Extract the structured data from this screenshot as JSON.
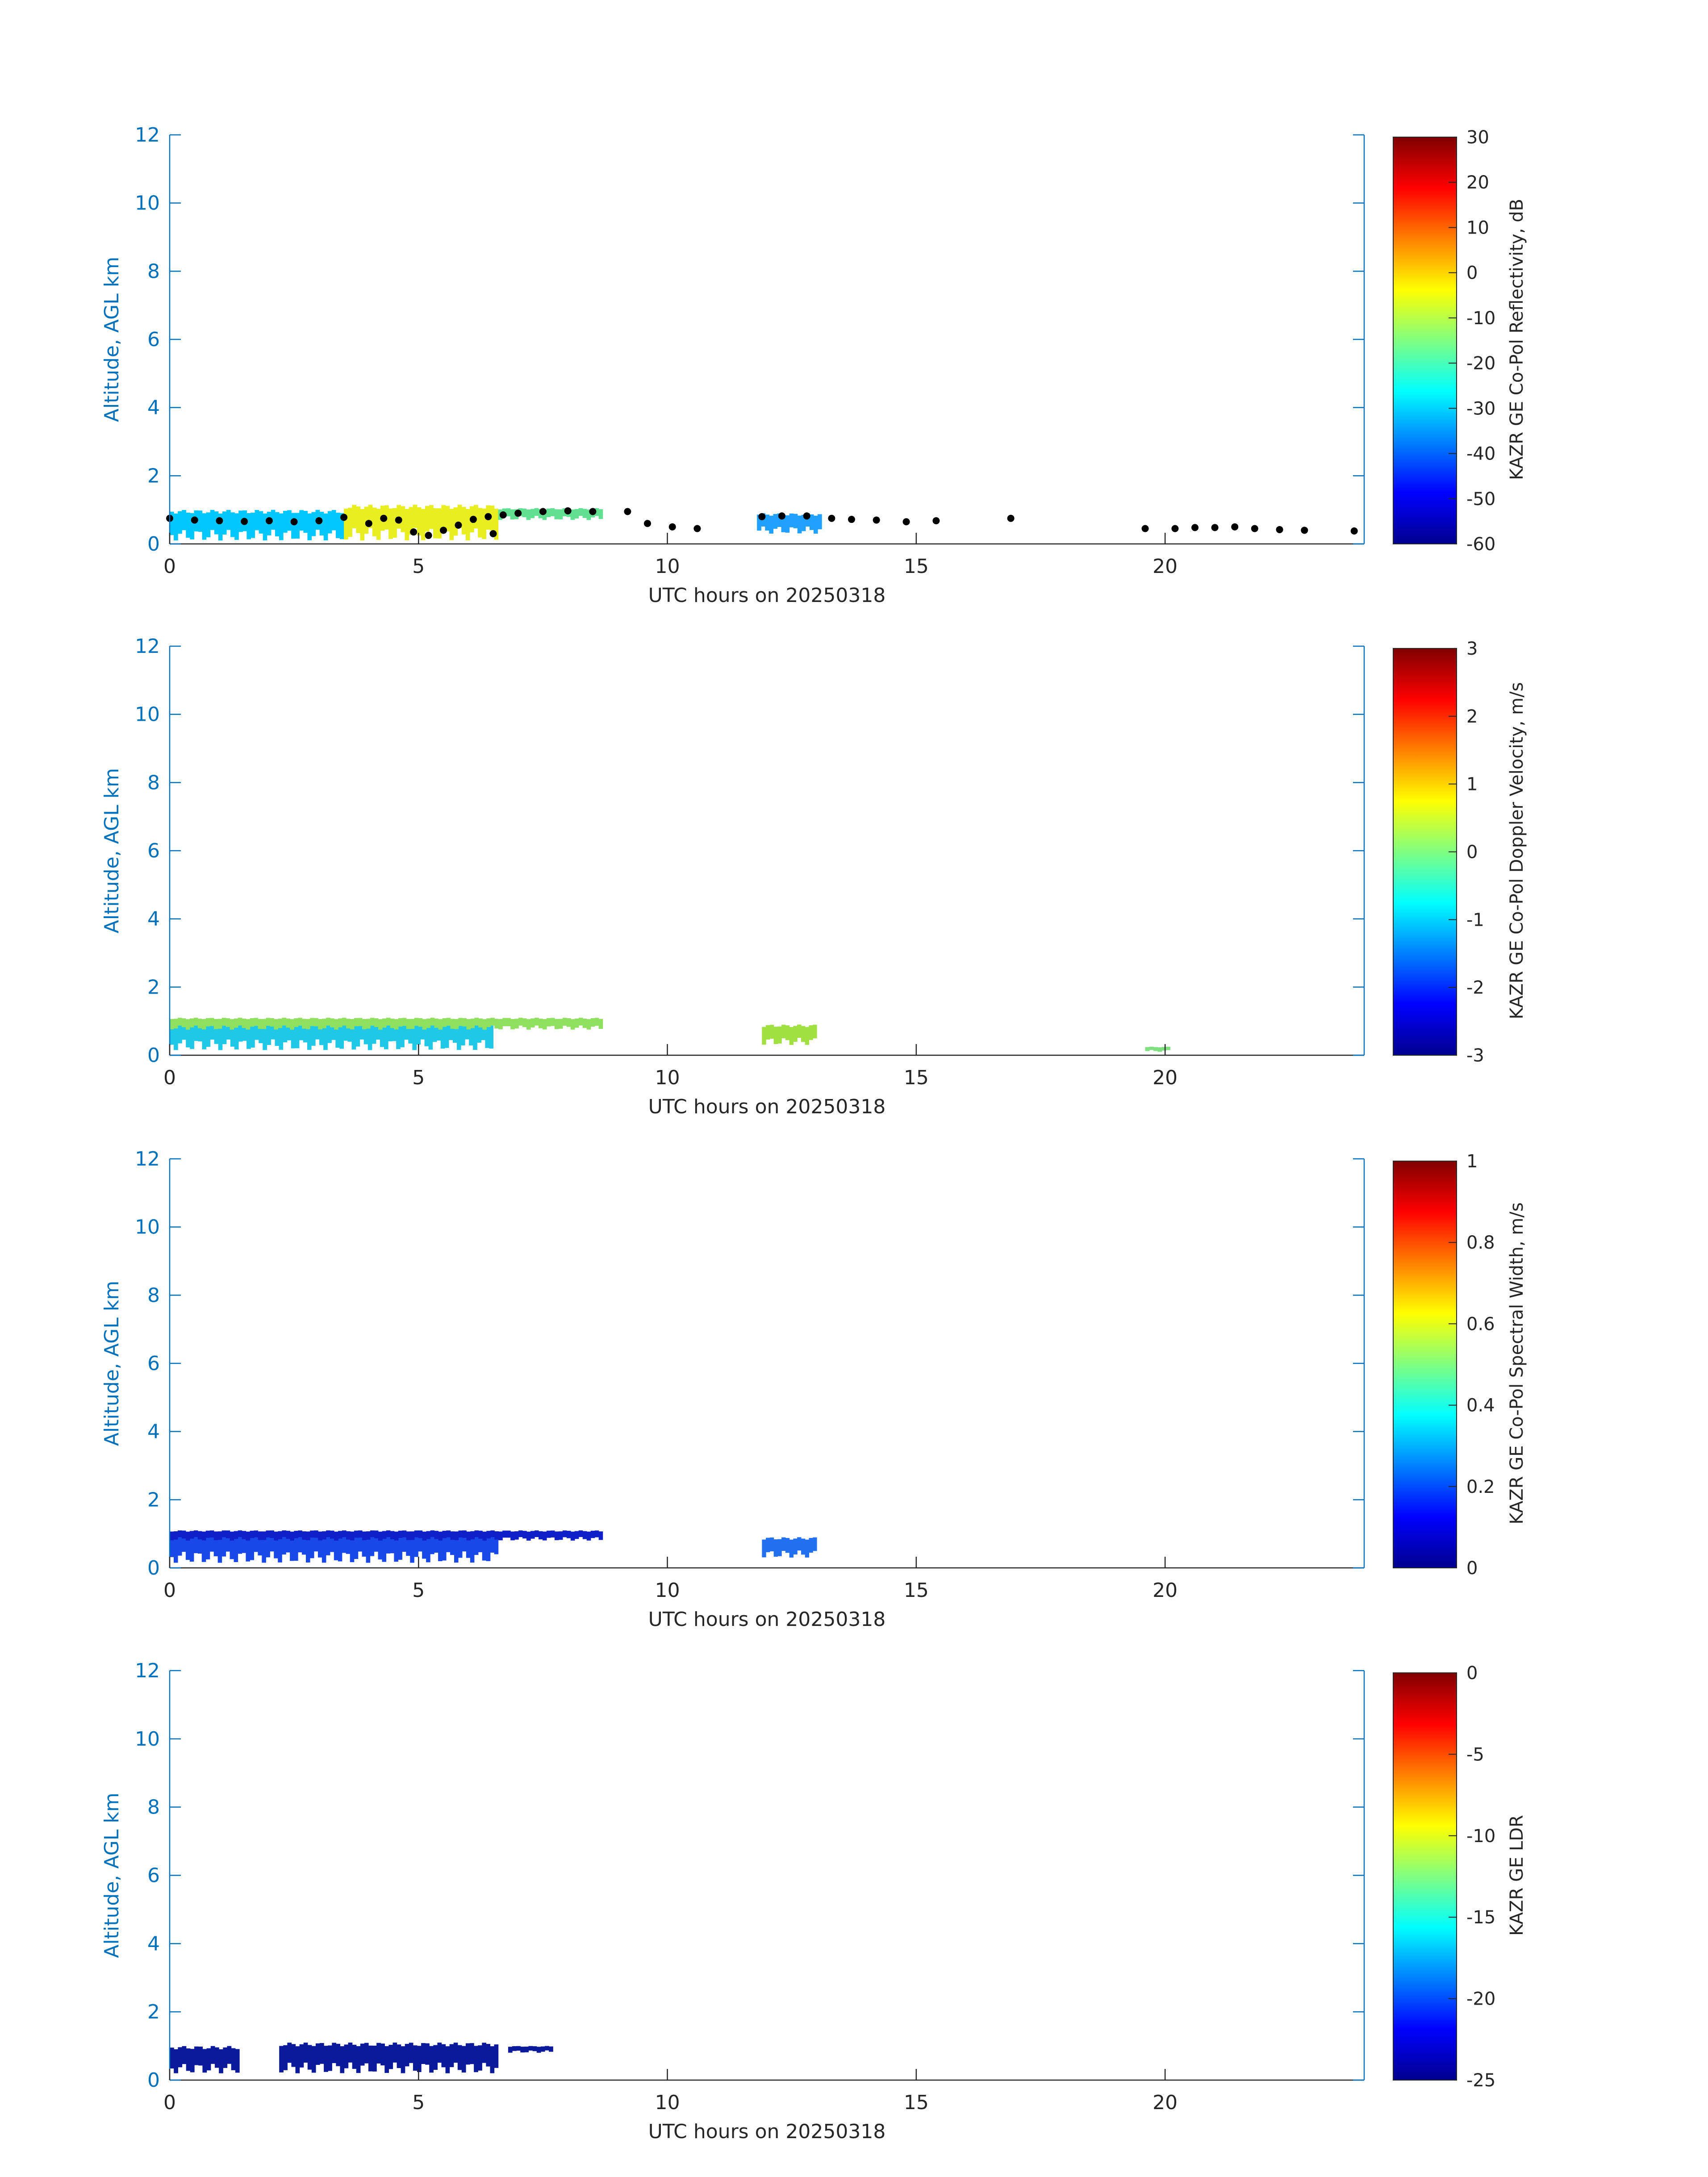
{
  "chart_data": [
    {
      "type": "heatmap",
      "xlabel": "UTC hours on 20250318",
      "ylabel": "Altitude, AGL km",
      "xlim": [
        0,
        24
      ],
      "ylim": [
        0,
        12
      ],
      "xticks": [
        0,
        5,
        10,
        15,
        20
      ],
      "yticks": [
        0,
        2,
        4,
        6,
        8,
        10,
        12
      ],
      "colorbar": {
        "label": "KAZR GE Co-Pol Reflectivity, dB",
        "range": [
          -60,
          30
        ],
        "ticks": [
          -60,
          -50,
          -40,
          -30,
          -20,
          -10,
          0,
          10,
          20,
          30
        ]
      },
      "cloud_echo": [
        {
          "x": [
            0,
            3.5
          ],
          "ymin": 0.1,
          "ymax": 1.0,
          "color": "#00c8ff"
        },
        {
          "x": [
            3.5,
            6.6
          ],
          "ymin": 0.1,
          "ymax": 1.15,
          "color": "#e8ee20"
        },
        {
          "x": [
            6.6,
            8.7
          ],
          "ymin": 0.7,
          "ymax": 1.05,
          "color": "#60e090"
        },
        {
          "x": [
            11.8,
            13.1
          ],
          "ymin": 0.3,
          "ymax": 0.9,
          "color": "#20a0ff"
        }
      ],
      "cloud_base_points": [
        [
          0,
          0.75
        ],
        [
          0.5,
          0.7
        ],
        [
          1,
          0.68
        ],
        [
          1.5,
          0.66
        ],
        [
          2,
          0.68
        ],
        [
          2.5,
          0.65
        ],
        [
          3,
          0.68
        ],
        [
          3.5,
          0.78
        ],
        [
          4,
          0.6
        ],
        [
          4.3,
          0.75
        ],
        [
          4.6,
          0.7
        ],
        [
          4.9,
          0.35
        ],
        [
          5.2,
          0.25
        ],
        [
          5.5,
          0.4
        ],
        [
          5.8,
          0.55
        ],
        [
          6.1,
          0.72
        ],
        [
          6.4,
          0.8
        ],
        [
          6.5,
          0.3
        ],
        [
          6.7,
          0.85
        ],
        [
          7,
          0.9
        ],
        [
          7.5,
          0.95
        ],
        [
          8,
          0.97
        ],
        [
          8.5,
          0.95
        ],
        [
          9.2,
          0.95
        ],
        [
          9.6,
          0.6
        ],
        [
          10.1,
          0.5
        ],
        [
          10.6,
          0.45
        ],
        [
          11.9,
          0.8
        ],
        [
          12.3,
          0.82
        ],
        [
          12.8,
          0.82
        ],
        [
          13.3,
          0.75
        ],
        [
          13.7,
          0.72
        ],
        [
          14.2,
          0.7
        ],
        [
          14.8,
          0.65
        ],
        [
          15.4,
          0.68
        ],
        [
          16.9,
          0.75
        ],
        [
          19.6,
          0.45
        ],
        [
          20.2,
          0.45
        ],
        [
          20.6,
          0.48
        ],
        [
          21,
          0.48
        ],
        [
          21.4,
          0.5
        ],
        [
          21.8,
          0.45
        ],
        [
          22.3,
          0.42
        ],
        [
          22.8,
          0.4
        ],
        [
          23.8,
          0.38
        ]
      ]
    },
    {
      "type": "heatmap",
      "xlabel": "UTC hours on 20250318",
      "ylabel": "Altitude, AGL km",
      "xlim": [
        0,
        24
      ],
      "ylim": [
        0,
        12
      ],
      "xticks": [
        0,
        5,
        10,
        15,
        20
      ],
      "yticks": [
        0,
        2,
        4,
        6,
        8,
        10,
        12
      ],
      "colorbar": {
        "label": "KAZR GE Co-Pol Doppler Velocity, m/s",
        "range": [
          -3,
          3
        ],
        "ticks": [
          -3,
          -2,
          -1,
          0,
          1,
          2,
          3
        ]
      },
      "cloud_echo": [
        {
          "x": [
            0,
            6.5
          ],
          "ymin": 0.15,
          "ymax": 1.05,
          "color": "#20c8e8"
        },
        {
          "x": [
            0,
            8.7
          ],
          "ymin": 0.75,
          "ymax": 1.1,
          "color": "#90e060"
        },
        {
          "x": [
            11.9,
            13.0
          ],
          "ymin": 0.3,
          "ymax": 0.9,
          "color": "#a0e040"
        },
        {
          "x": [
            19.6,
            20.1
          ],
          "ymin": 0.1,
          "ymax": 0.25,
          "color": "#80e080"
        }
      ]
    },
    {
      "type": "heatmap",
      "xlabel": "UTC hours on 20250318",
      "ylabel": "Altitude, AGL km",
      "xlim": [
        0,
        24
      ],
      "ylim": [
        0,
        12
      ],
      "xticks": [
        0,
        5,
        10,
        15,
        20
      ],
      "yticks": [
        0,
        2,
        4,
        6,
        8,
        10,
        12
      ],
      "colorbar": {
        "label": "KAZR GE Co-Pol Spectral Width, m/s",
        "range": [
          0,
          1
        ],
        "ticks": [
          0,
          0.2,
          0.4,
          0.6,
          0.8,
          1
        ]
      },
      "cloud_echo": [
        {
          "x": [
            0,
            6.6
          ],
          "ymin": 0.15,
          "ymax": 1.1,
          "color": "#1848e8"
        },
        {
          "x": [
            0,
            8.7
          ],
          "ymin": 0.8,
          "ymax": 1.1,
          "color": "#1020c8"
        },
        {
          "x": [
            11.9,
            13.0
          ],
          "ymin": 0.3,
          "ymax": 0.9,
          "color": "#2070f0"
        }
      ]
    },
    {
      "type": "heatmap",
      "xlabel": "UTC hours on 20250318",
      "ylabel": "Altitude, AGL km",
      "xlim": [
        0,
        24
      ],
      "ylim": [
        0,
        12
      ],
      "xticks": [
        0,
        5,
        10,
        15,
        20
      ],
      "yticks": [
        0,
        2,
        4,
        6,
        8,
        10,
        12
      ],
      "colorbar": {
        "label": "KAZR GE LDR",
        "range": [
          -25,
          0
        ],
        "ticks": [
          -25,
          -20,
          -15,
          -10,
          -5,
          0
        ]
      },
      "cloud_echo": [
        {
          "x": [
            0,
            1.4
          ],
          "ymin": 0.2,
          "ymax": 1.0,
          "color": "#0a1a9a"
        },
        {
          "x": [
            2.2,
            6.6
          ],
          "ymin": 0.2,
          "ymax": 1.1,
          "color": "#0a1a9a"
        },
        {
          "x": [
            6.8,
            7.7
          ],
          "ymin": 0.8,
          "ymax": 1.0,
          "color": "#0a1a9a"
        }
      ]
    }
  ],
  "colors": {
    "axis": "#0072bd",
    "text": "#262626",
    "colormap": [
      "#00008f",
      "#0000ff",
      "#0080ff",
      "#00ffff",
      "#80ff80",
      "#ffff00",
      "#ff8000",
      "#ff0000",
      "#800000"
    ]
  }
}
